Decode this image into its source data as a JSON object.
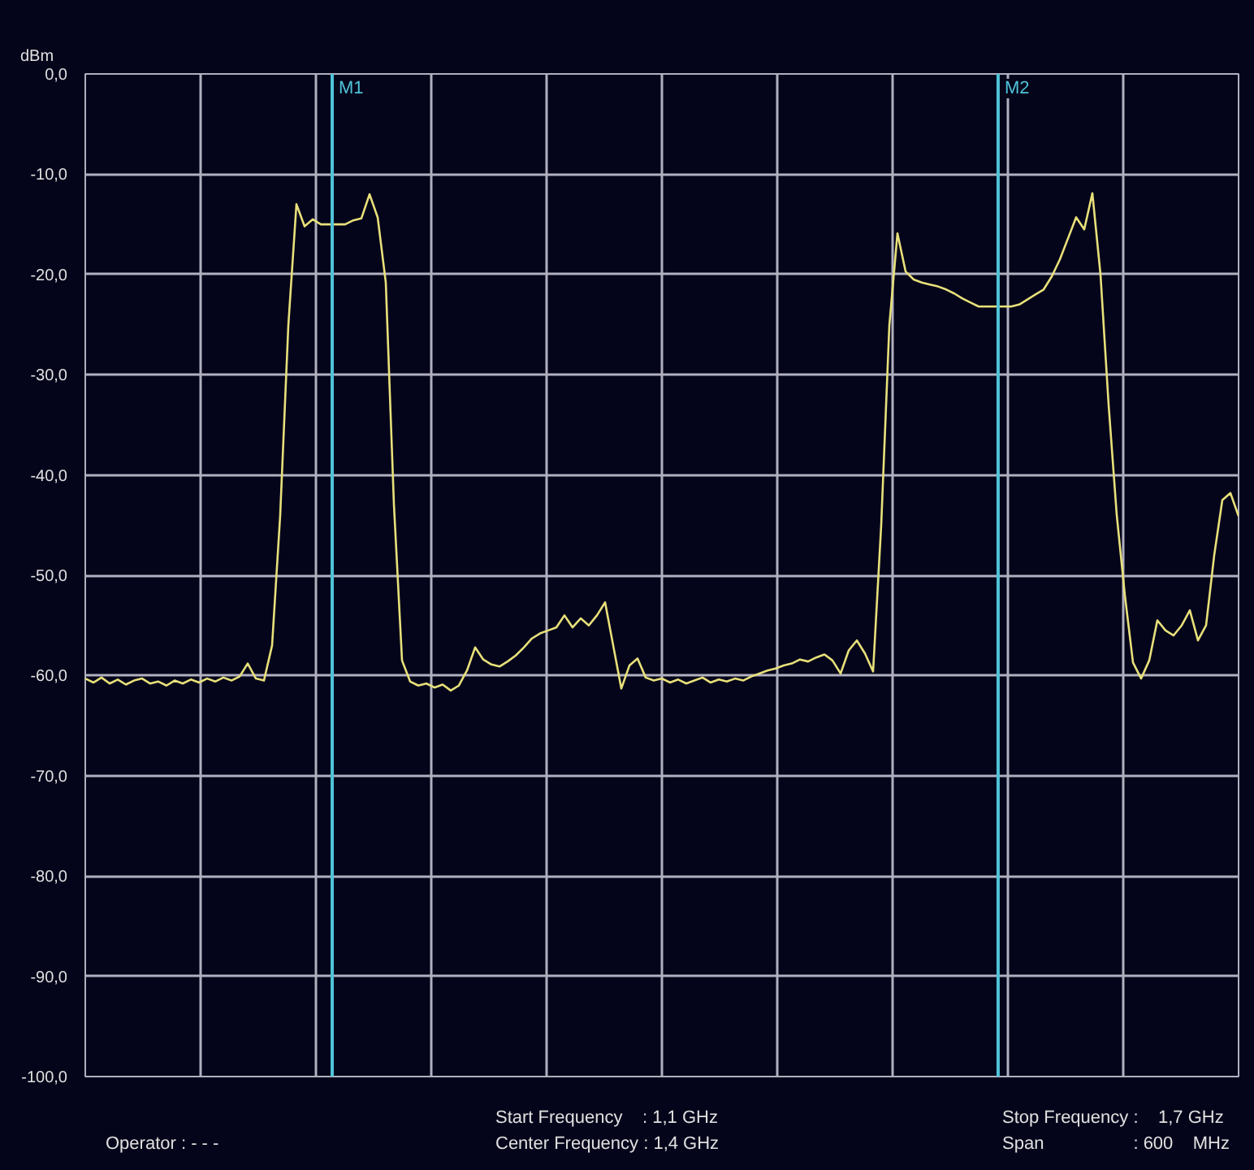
{
  "chart_data": {
    "type": "line",
    "ylabel": "dBm",
    "categories": [
      null,
      null,
      null,
      null,
      null,
      null,
      null,
      null,
      null,
      null,
      null,
      null,
      null,
      null,
      null,
      null,
      null,
      null,
      null,
      null,
      null,
      null,
      null,
      null,
      null,
      null,
      null,
      null,
      null,
      null,
      null,
      null,
      null,
      null,
      null,
      null,
      null,
      null,
      null,
      null,
      null,
      null,
      null,
      null,
      null,
      null,
      null,
      null,
      null,
      null,
      null,
      null,
      null,
      null,
      null,
      null,
      null,
      null,
      null,
      null,
      null,
      null,
      null,
      null,
      null,
      null,
      null,
      null,
      null,
      null,
      null,
      null,
      null,
      null,
      null,
      null,
      null,
      null,
      null,
      null,
      null,
      null,
      null,
      null,
      null,
      null,
      null,
      null,
      null,
      null,
      null,
      null,
      null,
      null,
      null,
      null,
      null,
      null,
      null,
      null,
      null,
      null,
      null,
      null,
      null,
      null,
      null,
      null,
      null,
      null,
      null,
      null,
      null,
      null,
      null,
      null,
      null,
      null,
      null,
      null,
      null,
      null,
      null,
      null,
      null,
      null,
      null,
      null,
      null,
      null,
      null,
      null,
      null,
      null,
      null,
      null,
      null,
      null,
      null,
      null,
      null,
      null,
      null
    ],
    "series": [
      {
        "color": "#e8e07a",
        "values": [
          -60.3,
          -60.7,
          -60.2,
          -60.8,
          -60.4,
          -60.9,
          -60.5,
          -60.3,
          -60.8,
          -60.6,
          -61.0,
          -60.5,
          -60.8,
          -60.4,
          -60.7,
          -60.3,
          -60.6,
          -60.2,
          -60.5,
          -60.1,
          -58.8,
          -60.3,
          -60.5,
          -57.0,
          -44.0,
          -25.1,
          -13.0,
          -15.2,
          -14.5,
          -15.0,
          -15.0,
          -15.0,
          -15.0,
          -14.6,
          -14.4,
          -12.0,
          -14.3,
          -20.8,
          -42.9,
          -58.5,
          -60.6,
          -61.0,
          -60.8,
          -61.2,
          -60.9,
          -61.5,
          -61.0,
          -59.5,
          -57.2,
          -58.4,
          -58.9,
          -59.1,
          -58.6,
          -58.0,
          -57.2,
          -56.3,
          -55.8,
          -55.5,
          -55.2,
          -54.0,
          -55.2,
          -54.3,
          -55.0,
          -54.0,
          -52.7,
          -57.0,
          -61.3,
          -59.0,
          -58.3,
          -60.2,
          -60.5,
          -60.3,
          -60.7,
          -60.4,
          -60.8,
          -60.5,
          -60.2,
          -60.7,
          -60.4,
          -60.6,
          -60.3,
          -60.5,
          -60.1,
          -59.8,
          -59.5,
          -59.3,
          -59.0,
          -58.8,
          -58.4,
          -58.6,
          -58.2,
          -57.9,
          -58.5,
          -59.8,
          -57.5,
          -56.5,
          -57.8,
          -59.6,
          -45.0,
          -25.1,
          -15.9,
          -19.7,
          -20.5,
          -20.8,
          -21.0,
          -21.2,
          -21.5,
          -21.9,
          -22.4,
          -22.8,
          -23.2,
          -23.2,
          -23.2,
          -23.2,
          -23.2,
          -23.0,
          -22.5,
          -22.0,
          -21.5,
          -20.2,
          -18.5,
          -16.4,
          -14.3,
          -15.5,
          -11.9,
          -20.0,
          -33.0,
          -44.0,
          -52.0,
          -58.7,
          -60.3,
          -58.5,
          -54.5,
          -55.5,
          -56.0,
          -55.0,
          -53.5,
          -56.5,
          -55.0,
          -48.0,
          -42.5,
          -41.8,
          -44.1
        ]
      }
    ],
    "ylim": [
      -100,
      0
    ],
    "yticks": [
      {
        "value": 0,
        "label": "0,0"
      },
      {
        "value": -10,
        "label": "-10,0"
      },
      {
        "value": -20,
        "label": "-20,0"
      },
      {
        "value": -30,
        "label": "-30,0"
      },
      {
        "value": -40,
        "label": "-40,0"
      },
      {
        "value": -50,
        "label": "-50,0"
      },
      {
        "value": -60,
        "label": "-60,0"
      },
      {
        "value": -70,
        "label": "-70,0"
      },
      {
        "value": -80,
        "label": "-80,0"
      },
      {
        "value": -90,
        "label": "-90,0"
      },
      {
        "value": -100,
        "label": "-100,0"
      }
    ],
    "tick_labels": "y",
    "grid": true,
    "annotations": [
      "M1",
      "M2",
      "Operator : - - -",
      "Start Frequency    : 1,1 GHz",
      "Center Frequency : 1,4 GHz",
      "Stop Frequency :    1,7 GHz",
      "Span                  : 600    MHz"
    ]
  }
}
